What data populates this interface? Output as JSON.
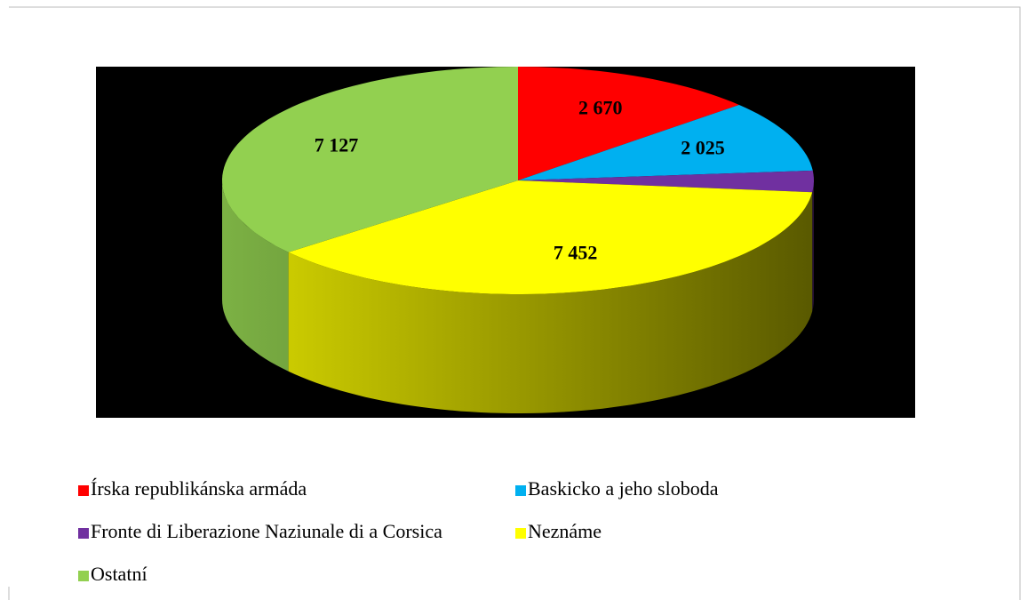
{
  "chart_data": {
    "type": "pie3d",
    "categories": [
      "Írska republikánska armáda",
      "Baskicko a jeho sloboda",
      "Fronte di Liberazione Naziunale di a Corsica",
      "Neznáme",
      "Ostatní"
    ],
    "values": [
      2670,
      2025,
      600,
      7452,
      7127
    ],
    "value_labels": [
      "2 670",
      "2 025",
      null,
      "7 452",
      "7 127"
    ],
    "colors": [
      "#ff0000",
      "#00b0f0",
      "#7030a0",
      "#ffff00",
      "#92d050"
    ],
    "background": "#000000"
  }
}
